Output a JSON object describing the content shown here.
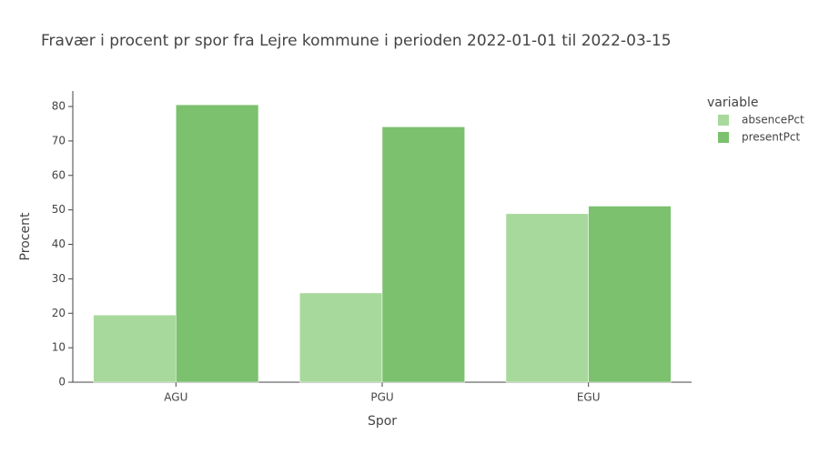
{
  "chart_data": {
    "type": "bar",
    "title": "Fravær i procent pr spor fra Lejre kommune i perioden 2022-01-01 til 2022-03-15",
    "x_label": "Spor",
    "y_label": "Procent",
    "legend_title": "variable",
    "categories": [
      "AGU",
      "PGU",
      "EGU"
    ],
    "series": [
      {
        "name": "absencePct",
        "color": "#a8d99c",
        "values": [
          19.5,
          25.9,
          48.9
        ]
      },
      {
        "name": "presentPct",
        "color": "#7bc16e",
        "values": [
          80.5,
          74.1,
          51.1
        ]
      }
    ],
    "ylim": [
      0,
      84.5
    ],
    "yticks": [
      0,
      10,
      20,
      30,
      40,
      50,
      60,
      70,
      80
    ]
  }
}
